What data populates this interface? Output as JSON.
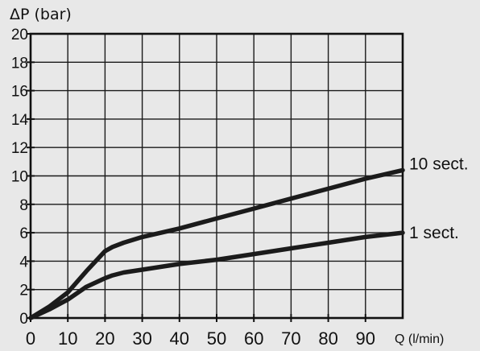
{
  "chart_data": {
    "type": "line",
    "ylabel": "ΔP (bar)",
    "xlabel": "Q (l/min)",
    "x_ticks": [
      "0",
      "10",
      "20",
      "30",
      "40",
      "50",
      "60",
      "70",
      "80",
      "90"
    ],
    "y_ticks": [
      "0",
      "2",
      "4",
      "6",
      "8",
      "10",
      "12",
      "14",
      "16",
      "18",
      "20"
    ],
    "xlim": [
      0,
      100
    ],
    "ylim": [
      0,
      20
    ],
    "grid": true,
    "series": [
      {
        "name": "10 sect.",
        "x": [
          0,
          5,
          10,
          15,
          20,
          22,
          25,
          30,
          40,
          50,
          60,
          70,
          80,
          90,
          100
        ],
        "y": [
          0,
          0.8,
          1.8,
          3.3,
          4.7,
          5.0,
          5.3,
          5.7,
          6.3,
          7.0,
          7.7,
          8.4,
          9.1,
          9.8,
          10.4
        ]
      },
      {
        "name": "1 sect.",
        "x": [
          0,
          5,
          10,
          15,
          20,
          22,
          25,
          30,
          40,
          50,
          60,
          70,
          80,
          90,
          100
        ],
        "y": [
          0,
          0.6,
          1.3,
          2.2,
          2.8,
          3.0,
          3.2,
          3.4,
          3.8,
          4.1,
          4.5,
          4.9,
          5.3,
          5.7,
          6.0
        ]
      }
    ],
    "colors": {
      "line": "#1b1b1b",
      "grid": "#1a1a1a",
      "background": "#e8e8e8"
    }
  }
}
